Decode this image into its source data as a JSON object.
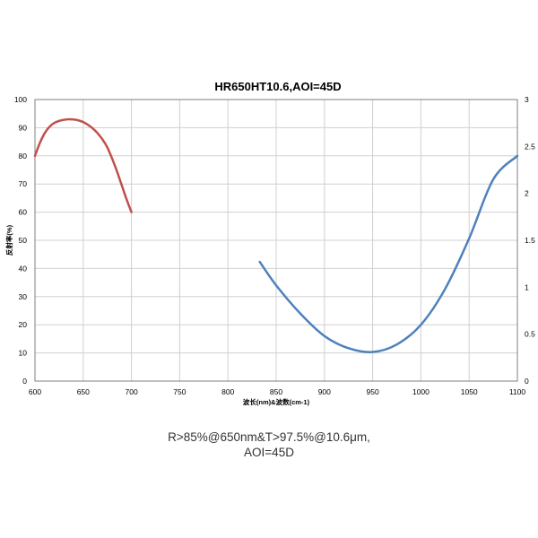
{
  "chart_data": {
    "type": "line",
    "title": "HR650HT10.6,AOI=45D",
    "xlabel": "波长(nm)&波数(cm-1)",
    "ylabel": "反射率(%)",
    "xlim": [
      600,
      1100
    ],
    "x_ticks": [
      600,
      650,
      700,
      750,
      800,
      850,
      900,
      950,
      1000,
      1050,
      1100
    ],
    "ylim": [
      0,
      100
    ],
    "y_ticks": [
      0,
      10,
      20,
      30,
      40,
      50,
      60,
      70,
      80,
      90,
      100
    ],
    "y2lim": [
      0,
      3
    ],
    "y2_ticks": [
      "0",
      "0.5",
      "1",
      "1.5",
      "2",
      "2.5",
      "3"
    ],
    "grid": true,
    "series": [
      {
        "axis": "left",
        "color": "#c0504d",
        "x": [
          600,
          605,
          610,
          615,
          620,
          625,
          630,
          635,
          640,
          645,
          650,
          655,
          660,
          665,
          670,
          675,
          680,
          685,
          690,
          695,
          700
        ],
        "y": [
          80,
          84.5,
          88,
          90.3,
          91.7,
          92.4,
          92.8,
          93,
          92.9,
          92.6,
          92,
          91,
          89.7,
          88,
          85.8,
          83,
          79,
          74.5,
          69.5,
          64.5,
          60
        ]
      },
      {
        "axis": "right",
        "color": "#4f81bd",
        "x": [
          833,
          850,
          875,
          900,
          925,
          950,
          975,
          1000,
          1025,
          1050,
          1075,
          1100
        ],
        "y": [
          1.27,
          1.02,
          0.72,
          0.48,
          0.35,
          0.31,
          0.39,
          0.6,
          0.98,
          1.52,
          2.15,
          2.4
        ]
      }
    ]
  },
  "caption": {
    "line1": "R>85%@650nm&T>97.5%@10.6μm,",
    "line2": "AOI=45D"
  }
}
